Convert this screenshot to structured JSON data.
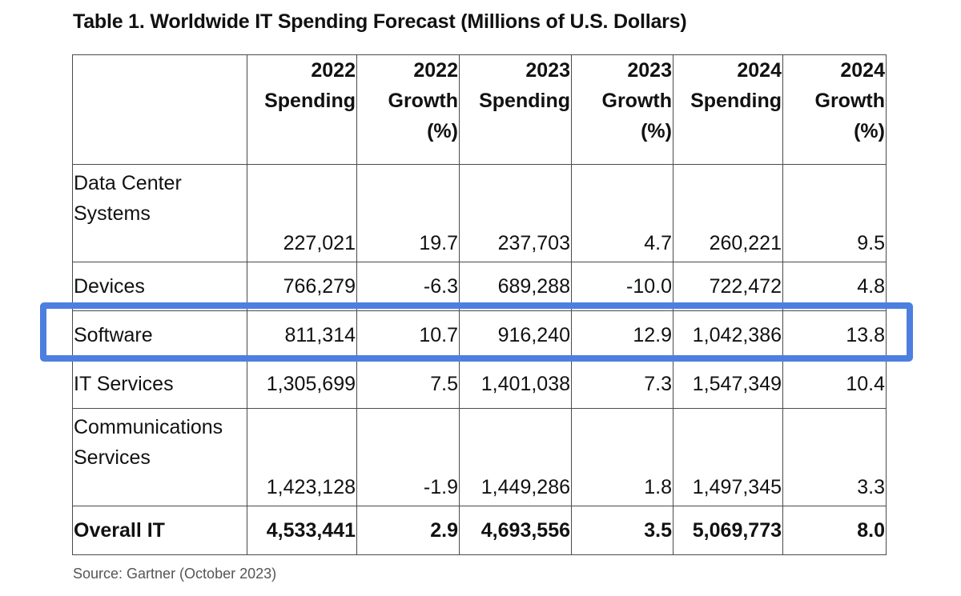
{
  "title": "Table 1. Worldwide IT Spending Forecast (Millions of U.S. Dollars)",
  "source": "Source: Gartner (October 2023)",
  "highlight_color": "#4d7fe0",
  "columns": [
    {
      "lines": [
        "2022",
        "Spending"
      ]
    },
    {
      "lines": [
        "2022",
        "Growth",
        "(%)"
      ]
    },
    {
      "lines": [
        "2023",
        "Spending"
      ]
    },
    {
      "lines": [
        "2023",
        "Growth",
        "(%)"
      ]
    },
    {
      "lines": [
        "2024",
        "Spending"
      ]
    },
    {
      "lines": [
        "2024",
        "Growth",
        "(%)"
      ]
    }
  ],
  "rows": [
    {
      "category": [
        "Data Center",
        "Systems"
      ],
      "values": [
        "227,021",
        "19.7",
        "237,703",
        "4.7",
        "260,221",
        "9.5"
      ]
    },
    {
      "category": [
        "Devices"
      ],
      "values": [
        "766,279",
        "-6.3",
        "689,288",
        "-10.0",
        "722,472",
        "4.8"
      ]
    },
    {
      "category": [
        "Software"
      ],
      "values": [
        "811,314",
        "10.7",
        "916,240",
        "12.9",
        "1,042,386",
        "13.8"
      ],
      "highlighted": true
    },
    {
      "category": [
        "IT Services"
      ],
      "values": [
        "1,305,699",
        "7.5",
        "1,401,038",
        "7.3",
        "1,547,349",
        "10.4"
      ]
    },
    {
      "category": [
        "Communications",
        "Services"
      ],
      "values": [
        "1,423,128",
        "-1.9",
        "1,449,286",
        "1.8",
        "1,497,345",
        "3.3"
      ]
    },
    {
      "category": [
        "Overall IT"
      ],
      "values": [
        "4,533,441",
        "2.9",
        "4,693,556",
        "3.5",
        "5,069,773",
        "8.0"
      ]
    }
  ]
}
